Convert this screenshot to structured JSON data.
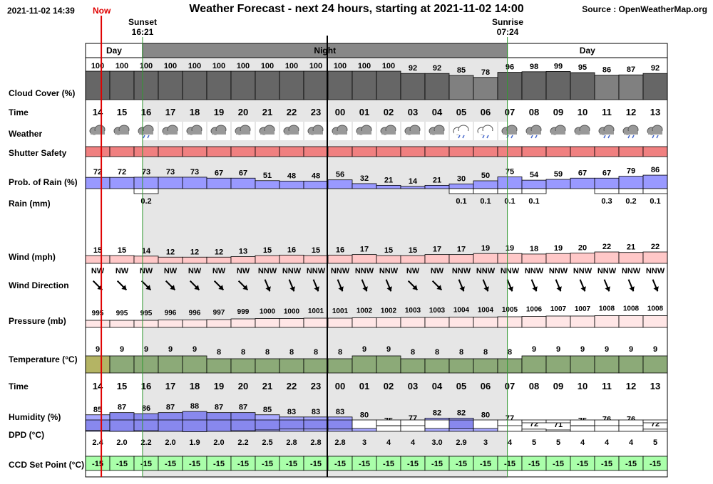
{
  "header": {
    "datetime": "2021-11-02 14:39",
    "now_label": "Now",
    "title": "Weather Forecast - next 24 hours, starting at 2021-11-02 14:00",
    "source": "Source : OpenWeatherMap.org"
  },
  "sun": {
    "sunset_label": "Sunset",
    "sunset_time": "16:21",
    "sunrise_label": "Sunrise",
    "sunrise_time": "07:24"
  },
  "periods": {
    "day1": "Day",
    "night": "Night",
    "day2": "Day"
  },
  "row_labels": {
    "cloud": "Cloud Cover (%)",
    "time": "Time",
    "weather": "Weather",
    "shutter": "Shutter Safety",
    "rain_prob": "Prob. of Rain (%)",
    "rain": "Rain (mm)",
    "wind": "Wind (mph)",
    "wind_dir": "Wind Direction",
    "pressure": "Pressure (mb)",
    "temperature": "Temperature (°C)",
    "time2": "Time",
    "humidity": "Humidity (%)",
    "dpd": "DPD (°C)",
    "ccd": "CCD Set Point (°C)"
  },
  "colors": {
    "cloud": "#666666",
    "cloud_light": "#808080",
    "shutter": "#f08080",
    "rain_prob": "#9999ff",
    "wind": "#ffc8c8",
    "pressure": "#ffe6e6",
    "temperature": "#8caa78",
    "temperature_now": "#b4b464",
    "humidity": "#aaaaff",
    "ccd": "#aaffaa",
    "night_bg": "#e6e6e6",
    "now_line": "#e00000",
    "sun_line": "#339933"
  },
  "chart_data": {
    "type": "table",
    "hours": [
      "14",
      "15",
      "16",
      "17",
      "18",
      "19",
      "20",
      "21",
      "22",
      "23",
      "00",
      "01",
      "02",
      "03",
      "04",
      "05",
      "06",
      "07",
      "08",
      "09",
      "10",
      "11",
      "12",
      "13"
    ],
    "cloud_cover": [
      100,
      100,
      100,
      100,
      100,
      100,
      100,
      100,
      100,
      100,
      100,
      100,
      100,
      92,
      92,
      85,
      78,
      96,
      98,
      99,
      95,
      86,
      87,
      92
    ],
    "weather_icons": [
      "cloud",
      "cloud",
      "cloud-rain",
      "cloud",
      "cloud",
      "cloud",
      "cloud",
      "cloud",
      "cloud",
      "cloud",
      "cloud",
      "cloud",
      "cloud",
      "cloud",
      "cloud",
      "cloud-rain-outline",
      "cloud-rain-outline",
      "cloud-rain",
      "cloud-rain",
      "cloud",
      "cloud",
      "cloud-rain",
      "cloud-rain",
      "cloud-rain"
    ],
    "rain_prob": [
      72,
      72,
      73,
      73,
      73,
      67,
      67,
      51,
      48,
      48,
      56,
      32,
      21,
      14,
      21,
      30,
      50,
      75,
      54,
      59,
      67,
      67,
      79,
      86
    ],
    "rain_mm": [
      "",
      "",
      "0.2",
      "",
      "",
      "",
      "",
      "",
      "",
      "",
      "",
      "",
      "",
      "",
      "",
      "0.1",
      "0.1",
      "0.1",
      "0.1",
      "",
      "",
      "0.3",
      "0.2",
      "0.1"
    ],
    "wind_mph": [
      15,
      15,
      14,
      12,
      12,
      12,
      13,
      15,
      16,
      15,
      16,
      17,
      15,
      15,
      17,
      17,
      19,
      19,
      18,
      19,
      20,
      22,
      21,
      22
    ],
    "wind_dir": [
      "NW",
      "NW",
      "NW",
      "NW",
      "NW",
      "NW",
      "NW",
      "NNW",
      "NNW",
      "NNW",
      "NNW",
      "NNW",
      "NNW",
      "NW",
      "NW",
      "NNW",
      "NNW",
      "NNW",
      "NNW",
      "NNW",
      "NNW",
      "NNW",
      "NNW",
      "NNW"
    ],
    "pressure": [
      995,
      995,
      995,
      996,
      996,
      997,
      999,
      1000,
      1000,
      1001,
      1001,
      1002,
      1002,
      1003,
      1003,
      1004,
      1004,
      1005,
      1006,
      1007,
      1007,
      1008,
      1008,
      1008
    ],
    "temperature": [
      9,
      9,
      9,
      9,
      9,
      8,
      8,
      8,
      8,
      8,
      8,
      9,
      9,
      8,
      8,
      8,
      8,
      8,
      9,
      9,
      9,
      9,
      9,
      9
    ],
    "humidity": [
      85,
      87,
      86,
      87,
      88,
      87,
      87,
      85,
      83,
      83,
      83,
      80,
      75,
      77,
      82,
      82,
      80,
      77,
      72,
      71,
      75,
      76,
      76,
      72
    ],
    "dpd": [
      "2.4",
      "2.0",
      "2.2",
      "2.0",
      "1.9",
      "2.0",
      "2.2",
      "2.5",
      "2.8",
      "2.8",
      "2.8",
      "3",
      "4",
      "4",
      "3.0",
      "2.9",
      "3",
      "4",
      "5",
      "5",
      "4",
      "4",
      "4",
      "5"
    ],
    "ccd_set_point": [
      -15,
      -15,
      -15,
      -15,
      -15,
      -15,
      -15,
      -15,
      -15,
      -15,
      -15,
      -15,
      -15,
      -15,
      -15,
      -15,
      -15,
      -15,
      -15,
      -15,
      -15,
      -15,
      -15,
      -15
    ]
  }
}
